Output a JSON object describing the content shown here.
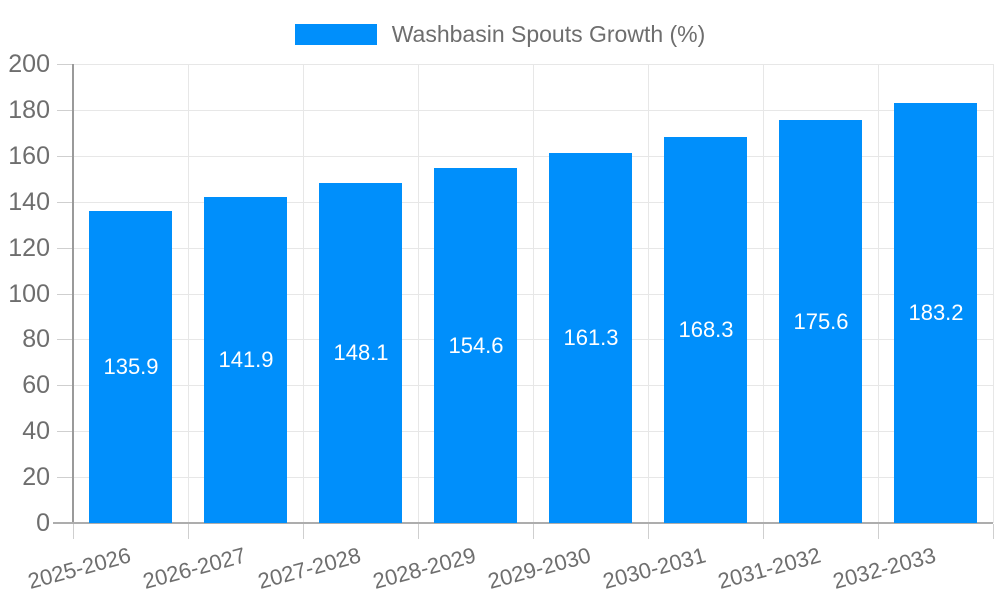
{
  "legend": {
    "label": "Washbasin Spouts Growth (%)",
    "swatch_color": "#008FFB"
  },
  "chart_data": {
    "type": "bar",
    "title": "Washbasin Spouts Growth (%)",
    "categories": [
      "2025-2026",
      "2026-2027",
      "2027-2028",
      "2028-2029",
      "2029-2030",
      "2030-2031",
      "2031-2032",
      "2032-2033"
    ],
    "values": [
      135.9,
      141.9,
      148.1,
      154.6,
      161.3,
      168.3,
      175.6,
      183.2
    ],
    "value_labels": [
      "135.9",
      "141.9",
      "148.1",
      "154.6",
      "161.3",
      "168.3",
      "175.6",
      "183.2"
    ],
    "xlabel": "",
    "ylabel": "",
    "ylim": [
      0,
      200
    ],
    "ytick_step": 20,
    "grid": true,
    "legend_position": "top",
    "x_label_rotation_deg": -15,
    "colors": {
      "bar": "#008FFB",
      "value_label": "#FFFFFF",
      "axis_text": "#6E6E6E",
      "gridline": "#E7E7E7",
      "y_axis_line": "#9A9A9A",
      "x_axis_line": "#ADADAD",
      "tick": "#CFCFCF"
    }
  }
}
